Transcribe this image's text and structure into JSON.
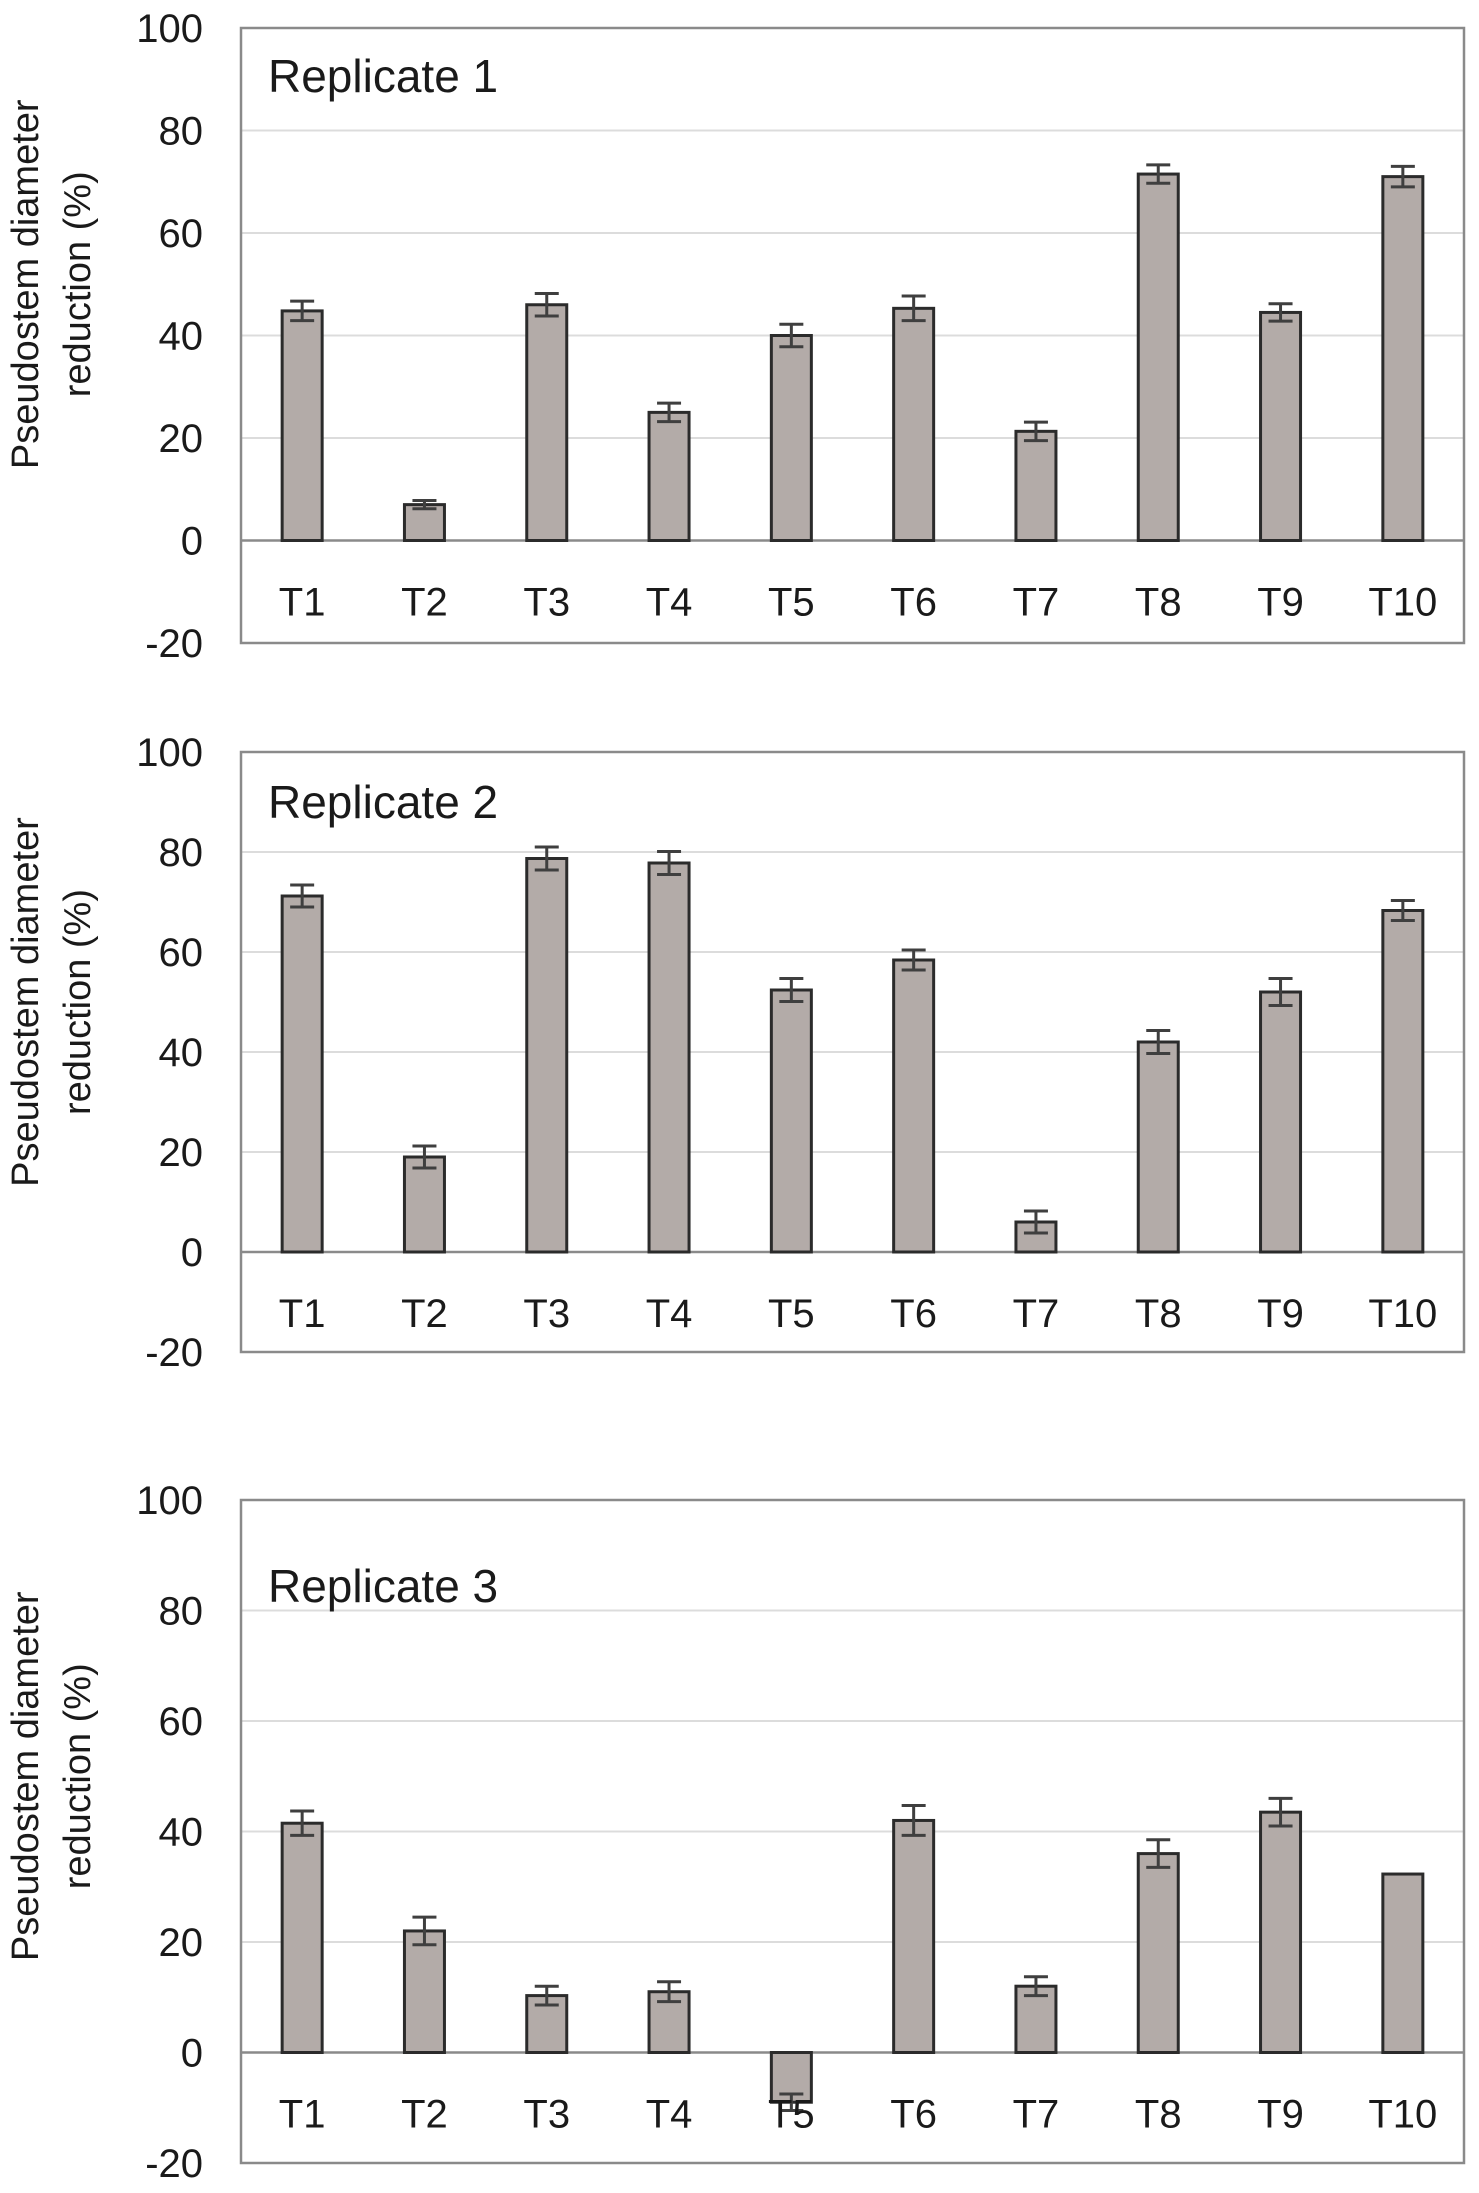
{
  "figure": {
    "colors": {
      "background": "#ffffff",
      "bar_fill": "#b3aba8",
      "bar_stroke": "#2b2b2b",
      "grid": "#dcdcdc",
      "frame": "#8a8a8a",
      "zero_line": "#8a8a8a",
      "error_bar": "#3f3f3f",
      "text": "#1a1a1a"
    }
  },
  "chart_data": [
    {
      "type": "bar",
      "title": "Replicate 1",
      "ylabel_line1": "Pseudostem diameter",
      "ylabel_line2": "reduction (%)",
      "categories": [
        "T1",
        "T2",
        "T3",
        "T4",
        "T5",
        "T6",
        "T7",
        "T8",
        "T9",
        "T10"
      ],
      "values": [
        44.8,
        7,
        46,
        25,
        40,
        45.3,
        21.3,
        71.5,
        44.5,
        71
      ],
      "errors": [
        1.9,
        0.8,
        2.2,
        1.8,
        2.2,
        2.4,
        1.8,
        1.8,
        1.7,
        2.0
      ],
      "ylim": [
        -20,
        100
      ],
      "yticks": [
        100,
        80,
        60,
        40,
        20,
        0,
        -20
      ],
      "grid": true,
      "legend": "none"
    },
    {
      "type": "bar",
      "title": "Replicate 2",
      "ylabel_line1": "Pseudostem diameter",
      "ylabel_line2": "reduction (%)",
      "categories": [
        "T1",
        "T2",
        "T3",
        "T4",
        "T5",
        "T6",
        "T7",
        "T8",
        "T9",
        "T10"
      ],
      "values": [
        71.2,
        19,
        78.7,
        77.8,
        52.4,
        58.4,
        6,
        42,
        52,
        68.3
      ],
      "errors": [
        2.2,
        2.2,
        2.3,
        2.3,
        2.3,
        2.0,
        2.2,
        2.3,
        2.7,
        2.0
      ],
      "ylim": [
        -20,
        100
      ],
      "yticks": [
        100,
        80,
        60,
        40,
        20,
        0,
        -20
      ],
      "grid": true,
      "legend": "none"
    },
    {
      "type": "bar",
      "title": "Replicate 3",
      "ylabel_line1": "Pseudostem diameter",
      "ylabel_line2": "reduction (%)",
      "categories": [
        "T1",
        "T2",
        "T3",
        "T4",
        "T5",
        "T6",
        "T7",
        "T8",
        "T9",
        "T10"
      ],
      "values": [
        41.5,
        22,
        10.3,
        11,
        -9,
        42,
        12,
        36,
        43.5,
        32.3
      ],
      "errors": [
        2.2,
        2.5,
        1.7,
        1.8,
        1.5,
        2.7,
        1.7,
        2.5,
        2.5,
        0
      ],
      "ylim": [
        -20,
        100
      ],
      "yticks": [
        100,
        80,
        60,
        40,
        20,
        0,
        -20
      ],
      "grid": true,
      "legend": "none"
    }
  ]
}
